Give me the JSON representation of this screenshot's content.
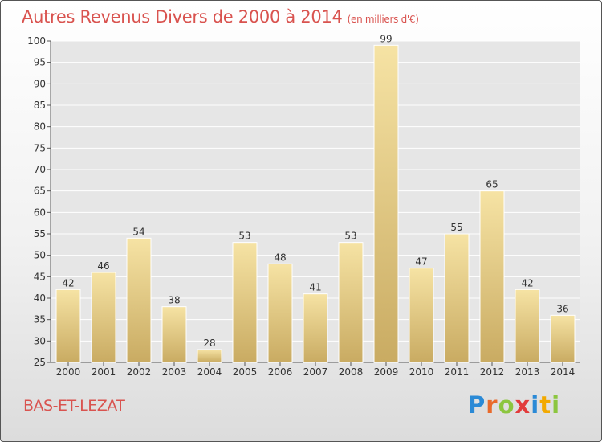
{
  "title": "Autres Revenus Divers de 2000 à 2014",
  "subtitle": "(en milliers d'€)",
  "commune": "BAS-ET-LEZAT",
  "logo": [
    "P",
    "r",
    "o",
    "x",
    "i",
    "t",
    "i"
  ],
  "colors": {
    "title": "#d9534f",
    "bar_light": "#f6e3a4",
    "bar_dark": "#c9ab62"
  },
  "chart_data": {
    "type": "bar",
    "title": "Autres Revenus Divers de 2000 à 2014",
    "subtitle": "(en milliers d'€)",
    "categories": [
      "2000",
      "2001",
      "2002",
      "2003",
      "2004",
      "2005",
      "2006",
      "2007",
      "2008",
      "2009",
      "2010",
      "2011",
      "2012",
      "2013",
      "2014"
    ],
    "values": [
      42,
      46,
      54,
      38,
      28,
      53,
      48,
      41,
      53,
      99,
      47,
      55,
      65,
      42,
      36
    ],
    "ylim": [
      25,
      100
    ],
    "yticks": [
      25,
      30,
      35,
      40,
      45,
      50,
      55,
      60,
      65,
      70,
      75,
      80,
      85,
      90,
      95,
      100
    ],
    "grid": true
  }
}
